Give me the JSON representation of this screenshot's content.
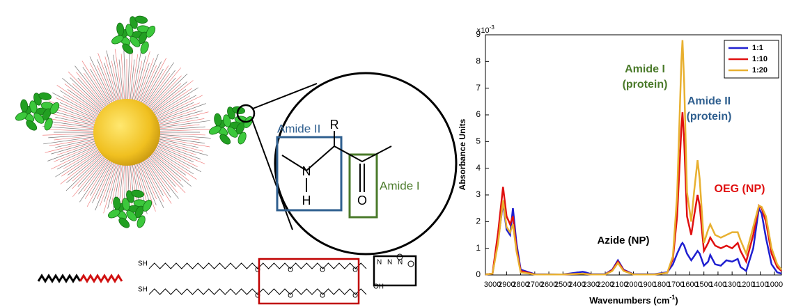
{
  "chart_data": {
    "type": "line",
    "ylabel": "Absorbance Units",
    "xlabel_parts": [
      "Wavenumbers (cm",
      "-1",
      ")"
    ],
    "y_multiplier": {
      "base": "×10",
      "exp": "-3"
    },
    "xlim": [
      3050,
      950
    ],
    "ylim": [
      0,
      9
    ],
    "xticks": [
      3000,
      2900,
      2800,
      2700,
      2600,
      2500,
      2400,
      2300,
      2200,
      2100,
      2000,
      1900,
      1800,
      1700,
      1600,
      1500,
      1400,
      1300,
      1200,
      1100,
      1000
    ],
    "yticks": [
      0,
      1,
      2,
      3,
      4,
      5,
      6,
      7,
      8,
      9
    ],
    "legend_position": "upper right",
    "x": [
      3050,
      3000,
      2960,
      2925,
      2900,
      2875,
      2855,
      2830,
      2800,
      2700,
      2500,
      2360,
      2340,
      2300,
      2200,
      2150,
      2110,
      2070,
      2000,
      1850,
      1760,
      1720,
      1690,
      1660,
      1652,
      1640,
      1620,
      1590,
      1570,
      1545,
      1530,
      1500,
      1470,
      1455,
      1420,
      1380,
      1340,
      1300,
      1260,
      1240,
      1200,
      1150,
      1110,
      1090,
      1060,
      1020,
      980,
      950
    ],
    "series": [
      {
        "name": "1:1",
        "color": "#1f1fd0",
        "values": [
          0.02,
          0.05,
          1.3,
          2.7,
          1.7,
          1.5,
          2.5,
          1.2,
          0.2,
          0.03,
          0.02,
          0.12,
          0.1,
          0.03,
          0.03,
          0.2,
          0.55,
          0.2,
          0.03,
          0.03,
          0.1,
          0.4,
          0.8,
          1.15,
          1.2,
          1.1,
          0.8,
          0.55,
          0.7,
          0.9,
          0.8,
          0.35,
          0.5,
          0.75,
          0.4,
          0.35,
          0.55,
          0.5,
          0.6,
          0.3,
          0.15,
          1.0,
          2.5,
          2.3,
          1.4,
          0.4,
          0.1,
          0.05
        ]
      },
      {
        "name": "1:10",
        "color": "#e01010",
        "values": [
          0.02,
          0.05,
          1.6,
          3.3,
          2.2,
          1.9,
          2.2,
          1.0,
          0.15,
          0.02,
          0.02,
          0.05,
          0.04,
          0.02,
          0.02,
          0.18,
          0.5,
          0.18,
          0.02,
          0.02,
          0.08,
          0.6,
          2.2,
          5.5,
          6.1,
          5.0,
          2.2,
          1.5,
          2.2,
          3.0,
          2.6,
          0.9,
          1.2,
          1.4,
          1.1,
          1.0,
          1.1,
          1.0,
          1.2,
          0.9,
          0.5,
          1.5,
          2.6,
          2.5,
          2.0,
          0.8,
          0.3,
          0.15
        ]
      },
      {
        "name": "1:20",
        "color": "#e8b030",
        "values": [
          0.02,
          0.05,
          1.2,
          2.8,
          1.8,
          1.6,
          1.9,
          0.9,
          0.1,
          0.02,
          0.02,
          0.05,
          0.04,
          0.02,
          0.02,
          0.15,
          0.45,
          0.15,
          0.02,
          0.02,
          0.08,
          0.7,
          3.0,
          8.0,
          8.8,
          7.2,
          3.1,
          2.0,
          3.1,
          4.3,
          3.6,
          1.2,
          1.7,
          1.9,
          1.5,
          1.4,
          1.5,
          1.6,
          1.6,
          1.3,
          0.8,
          1.8,
          2.6,
          2.55,
          2.2,
          1.0,
          0.4,
          0.2
        ]
      }
    ],
    "annotations": [
      {
        "text": "Amide I",
        "color": "#4a7a2a"
      },
      {
        "text": "(protein)",
        "color": "#4a7a2a"
      },
      {
        "text": "Amide II",
        "color": "#2f5f8f"
      },
      {
        "text": "(protein)",
        "color": "#2f5f8f"
      },
      {
        "text": "Azide (NP)",
        "color": "#000000"
      },
      {
        "text": "OEG (NP)",
        "color": "#e01010"
      }
    ]
  },
  "schematic": {
    "amide_ii": "Amide II",
    "amide_i": "Amide I",
    "r": "R",
    "n": "N",
    "h": "H",
    "o": "O"
  },
  "linkers": {
    "thiol": "SH",
    "ether_o": "O",
    "azide_n": "N",
    "terminal": "OH"
  }
}
